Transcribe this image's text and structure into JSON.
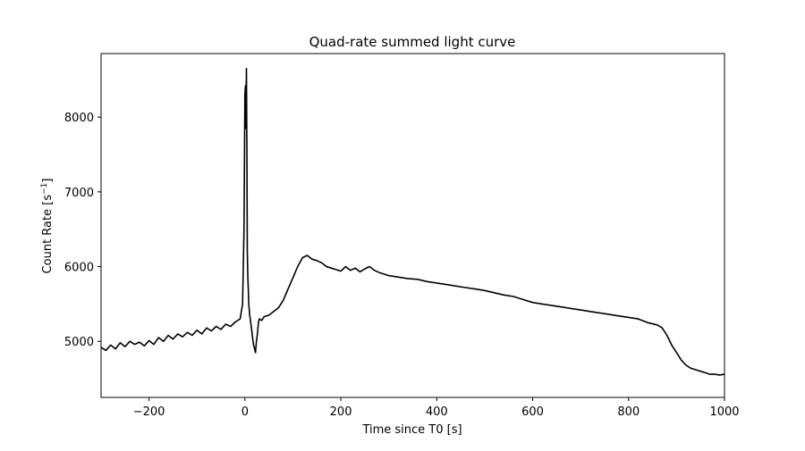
{
  "chart_data": {
    "type": "line",
    "title": "Quad-rate summed light curve",
    "xlabel": "Time since T0 [s]",
    "ylabel_main": "Count Rate [s",
    "ylabel_sup": "−1",
    "ylabel_close": "]",
    "xlim": [
      -300,
      1000
    ],
    "ylim": [
      4250,
      8850
    ],
    "xticks": [
      -200,
      0,
      200,
      400,
      600,
      800,
      1000
    ],
    "xtick_labels": [
      "−200",
      "0",
      "200",
      "400",
      "600",
      "800",
      "1000"
    ],
    "yticks": [
      5000,
      6000,
      7000,
      8000
    ],
    "ytick_labels": [
      "5000",
      "6000",
      "7000",
      "8000"
    ],
    "grid": false,
    "series": [
      {
        "color": "#000000",
        "x": [
          -300,
          -290,
          -280,
          -270,
          -260,
          -250,
          -240,
          -230,
          -220,
          -210,
          -200,
          -190,
          -180,
          -170,
          -160,
          -150,
          -140,
          -130,
          -120,
          -110,
          -100,
          -90,
          -80,
          -70,
          -60,
          -50,
          -40,
          -30,
          -20,
          -10,
          -5,
          -2,
          0,
          1,
          2,
          3,
          4,
          5,
          6,
          7,
          8,
          10,
          12,
          14,
          16,
          18,
          20,
          22,
          24,
          26,
          28,
          30,
          35,
          40,
          50,
          60,
          70,
          80,
          90,
          100,
          110,
          120,
          130,
          140,
          150,
          160,
          170,
          180,
          190,
          200,
          210,
          220,
          230,
          240,
          250,
          260,
          270,
          280,
          290,
          300,
          320,
          340,
          360,
          380,
          400,
          420,
          440,
          460,
          480,
          500,
          520,
          540,
          560,
          580,
          600,
          620,
          640,
          660,
          680,
          700,
          720,
          740,
          760,
          780,
          800,
          820,
          840,
          860,
          870,
          880,
          890,
          900,
          910,
          920,
          930,
          940,
          950,
          960,
          970,
          980,
          990,
          1000
        ],
        "y": [
          4920,
          4880,
          4950,
          4900,
          4980,
          4930,
          5000,
          4960,
          4990,
          4940,
          5010,
          4960,
          5050,
          5000,
          5080,
          5030,
          5100,
          5060,
          5120,
          5080,
          5150,
          5100,
          5180,
          5140,
          5200,
          5160,
          5230,
          5200,
          5260,
          5300,
          5500,
          6500,
          8300,
          8420,
          7850,
          8650,
          7600,
          6200,
          5850,
          5700,
          5500,
          5350,
          5250,
          5150,
          5050,
          4950,
          4900,
          4850,
          5000,
          5100,
          5250,
          5300,
          5280,
          5330,
          5350,
          5400,
          5450,
          5550,
          5700,
          5850,
          6000,
          6120,
          6150,
          6100,
          6080,
          6050,
          6000,
          5980,
          5960,
          5940,
          6000,
          5950,
          5980,
          5930,
          5970,
          6000,
          5950,
          5920,
          5900,
          5880,
          5860,
          5840,
          5830,
          5800,
          5780,
          5760,
          5740,
          5720,
          5700,
          5680,
          5650,
          5620,
          5600,
          5560,
          5520,
          5500,
          5480,
          5460,
          5440,
          5420,
          5400,
          5380,
          5360,
          5340,
          5320,
          5300,
          5250,
          5220,
          5180,
          5080,
          4950,
          4850,
          4750,
          4680,
          4640,
          4620,
          4600,
          4580,
          4560,
          4560,
          4550,
          4560
        ]
      }
    ]
  }
}
